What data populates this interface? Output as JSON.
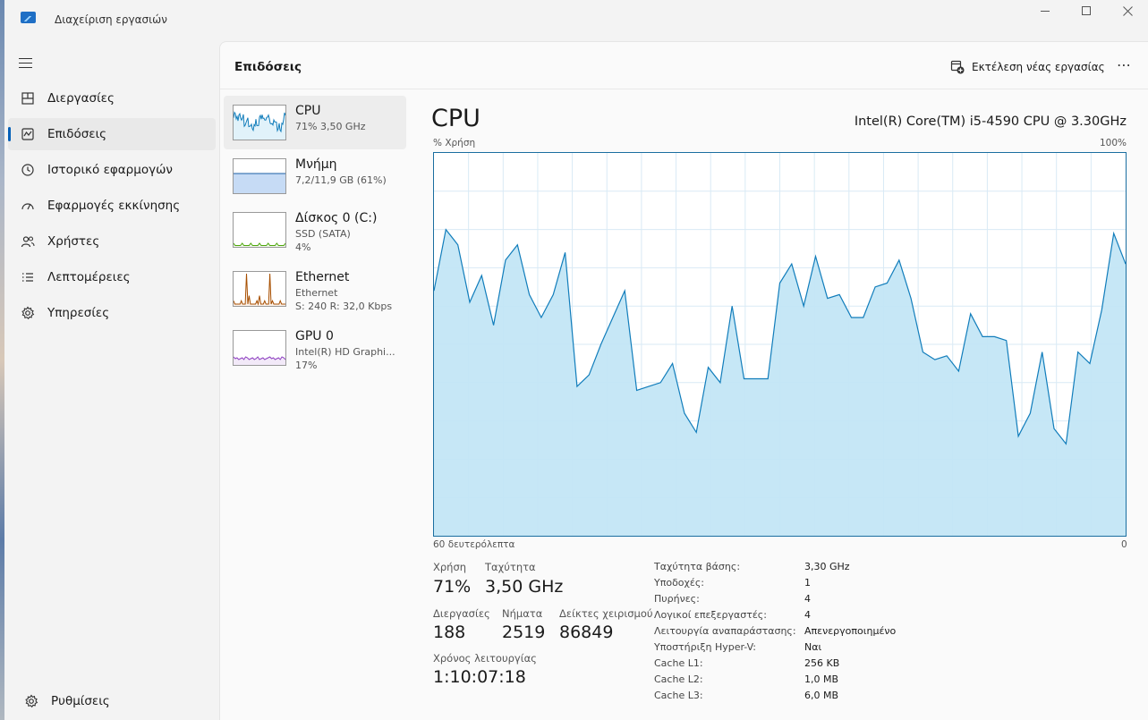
{
  "window": {
    "title": "Διαχείριση εργασιών"
  },
  "sidebar": {
    "items": [
      {
        "label": "Διεργασίες",
        "icon": "processes-grid-icon"
      },
      {
        "label": "Επιδόσεις",
        "icon": "performance-chart-icon",
        "active": true
      },
      {
        "label": "Ιστορικό εφαρμογών",
        "icon": "history-clock-icon"
      },
      {
        "label": "Εφαρμογές εκκίνησης",
        "icon": "startup-gauge-icon"
      },
      {
        "label": "Χρήστες",
        "icon": "users-icon"
      },
      {
        "label": "Λεπτομέρειες",
        "icon": "details-list-icon"
      },
      {
        "label": "Υπηρεσίες",
        "icon": "services-gear-icon"
      }
    ],
    "settings_label": "Ρυθμίσεις"
  },
  "header": {
    "title": "Επιδόσεις",
    "run_task_label": "Εκτέλεση νέας εργασίας",
    "more_label": "⋯"
  },
  "devices": [
    {
      "name": "CPU",
      "lines": [
        "71%  3,50 GHz"
      ],
      "color": "#117dbb",
      "fill": "#f1f6fa",
      "active": true
    },
    {
      "name": "Μνήμη",
      "lines": [
        "7,2/11,9 GB (61%)"
      ],
      "color": "#1b5fa5",
      "fill": "#c6dbf5"
    },
    {
      "name": "Δίσκος 0 (C:)",
      "lines": [
        "SSD (SATA)",
        "4%"
      ],
      "color": "#4da60c",
      "fill": "#ffffff"
    },
    {
      "name": "Ethernet",
      "lines": [
        "Ethernet",
        "S: 240  R: 32,0 Kbps"
      ],
      "color": "#a74f01",
      "fill": "#ffffff"
    },
    {
      "name": "GPU 0",
      "lines": [
        "Intel(R) HD Graphi...",
        "17%"
      ],
      "color": "#8e3fc1",
      "fill": "#ffffff"
    }
  ],
  "detail": {
    "title": "CPU",
    "model": "Intel(R) Core(TM) i5-4590 CPU @ 3.30GHz",
    "y_label": "% Χρήση",
    "y_max_label": "100%",
    "x_left_label": "60 δευτερόλεπτα",
    "x_right_label": "0",
    "line_color": "#117dbb",
    "fill_color": "#c3e6f6",
    "grid_color": "#d9eaf5"
  },
  "chart_data": {
    "type": "area",
    "ylim": [
      0,
      100
    ],
    "values": [
      64,
      80,
      76,
      61,
      68,
      55,
      72,
      76,
      63,
      57,
      63,
      74,
      39,
      42,
      50,
      57,
      64,
      38,
      39,
      40,
      45,
      32,
      27,
      44,
      40,
      60,
      41,
      41,
      41,
      66,
      71,
      60,
      73,
      62,
      63,
      57,
      57,
      65,
      66,
      72,
      62,
      48,
      46,
      47,
      43,
      58,
      52,
      52,
      51,
      26,
      32,
      48,
      28,
      24,
      48,
      45,
      59,
      79,
      71
    ]
  },
  "stats": {
    "usage_label": "Χρήση",
    "usage_value": "71%",
    "speed_label": "Ταχύτητα",
    "speed_value": "3,50 GHz",
    "processes_label": "Διεργασίες",
    "processes_value": "188",
    "threads_label": "Νήματα",
    "threads_value": "2519",
    "handles_label": "Δείκτες χειρισμού",
    "handles_value": "86849",
    "uptime_label": "Χρόνος λειτουργίας",
    "uptime_value": "1:10:07:18"
  },
  "specs": [
    {
      "key": "Ταχύτητα βάσης:",
      "value": "3,30 GHz"
    },
    {
      "key": "Υποδοχές:",
      "value": "1"
    },
    {
      "key": "Πυρήνες:",
      "value": "4"
    },
    {
      "key": "Λογικοί επεξεργαστές:",
      "value": "4"
    },
    {
      "key": "Λειτουργία αναπαράστασης:",
      "value": "Απενεργοποιημένο"
    },
    {
      "key": "Υποστήριξη Hyper-V:",
      "value": "Ναι"
    },
    {
      "key": "Cache L1:",
      "value": "256 KB"
    },
    {
      "key": "Cache L2:",
      "value": "1,0 MB"
    },
    {
      "key": "Cache L3:",
      "value": "6,0 MB"
    }
  ]
}
